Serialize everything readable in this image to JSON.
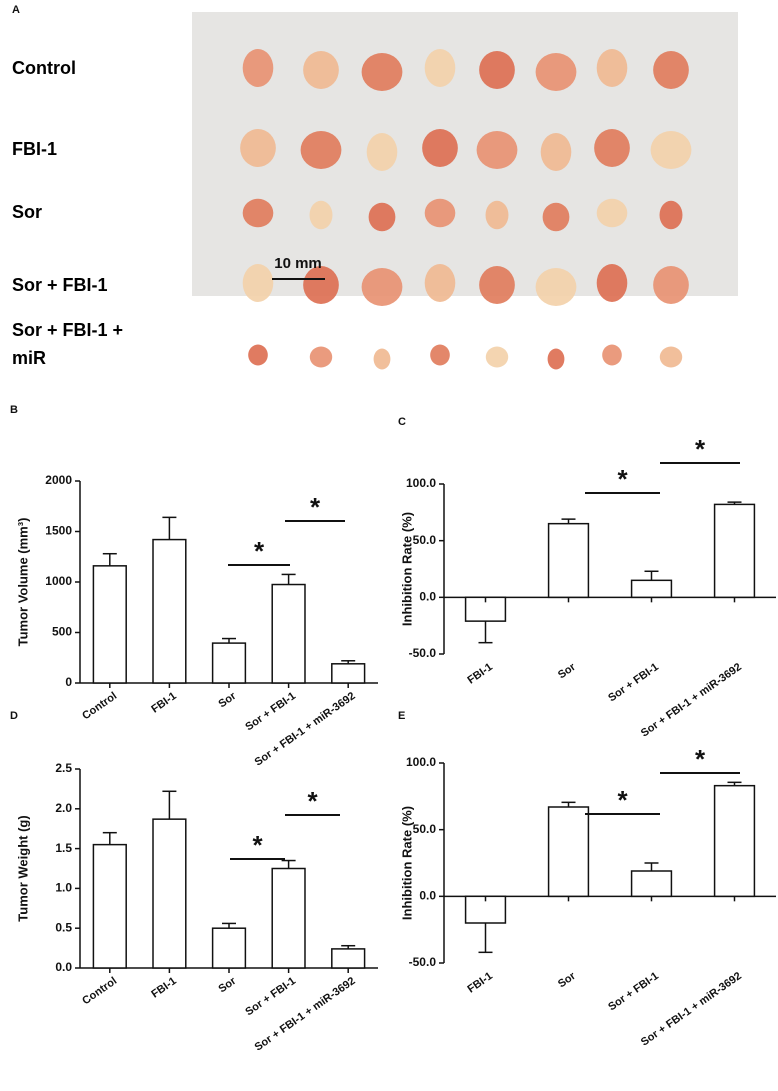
{
  "panel_a": {
    "panel": "A",
    "rows": [
      "Control",
      "FBI-1",
      "Sor",
      "Sor + FBI-1",
      "Sor + FBI-1 + miR"
    ],
    "scale_bar": "10 mm"
  },
  "chart_data": [
    {
      "type": "bar",
      "panel": "B",
      "ylabel": "Tumor Volume (mm³)",
      "categories": [
        "Control",
        "FBI-1",
        "Sor",
        "Sor + FBI-1",
        "Sor + FBI-1 + miR-3692"
      ],
      "values": [
        1160,
        1420,
        395,
        975,
        190
      ],
      "errors": [
        120,
        220,
        45,
        100,
        30
      ],
      "ylim": [
        0,
        2000
      ],
      "yticks": [
        0,
        500,
        1000,
        1500,
        2000
      ],
      "color": "#ffffff",
      "annotations": [
        "*",
        "*"
      ]
    },
    {
      "type": "bar",
      "panel": "C",
      "ylabel": "Inhibition Rate (%)",
      "categories": [
        "FBI-1",
        "Sor",
        "Sor + FBI-1",
        "Sor + FBI-1 + miR-3692"
      ],
      "values": [
        -21,
        65,
        15,
        82
      ],
      "errors": [
        19,
        4,
        8,
        2
      ],
      "ylim": [
        -50,
        100
      ],
      "yticks": [
        {
          "value": -50,
          "label": "-50.0"
        },
        {
          "value": 0,
          "label": "0.0"
        },
        {
          "value": 50,
          "label": "50.0"
        },
        {
          "value": 100,
          "label": "100.0"
        }
      ],
      "color": "#ffffff",
      "annotations": [
        "*",
        "*"
      ]
    },
    {
      "type": "bar",
      "panel": "D",
      "ylabel": "Tumor Weight (g)",
      "categories": [
        "Control",
        "FBI-1",
        "Sor",
        "Sor + FBI-1",
        "Sor + FBI-1 + miR-3692"
      ],
      "values": [
        1.55,
        1.87,
        0.5,
        1.25,
        0.24
      ],
      "errors": [
        0.15,
        0.35,
        0.06,
        0.1,
        0.04
      ],
      "ylim": [
        0,
        2.5
      ],
      "yticks": [
        {
          "value": 0,
          "label": "0.0"
        },
        {
          "value": 0.5,
          "label": "0.5"
        },
        {
          "value": 1,
          "label": "1.0"
        },
        {
          "value": 1.5,
          "label": "1.5"
        },
        {
          "value": 2,
          "label": "2.0"
        },
        {
          "value": 2.5,
          "label": "2.5"
        }
      ],
      "color": "#ffffff",
      "annotations": [
        "*",
        "*"
      ]
    },
    {
      "type": "bar",
      "panel": "E",
      "ylabel": "Inhibition Rate (%)",
      "categories": [
        "FBI-1",
        "Sor",
        "Sor + FBI-1",
        "Sor + FBI-1 + miR-3692"
      ],
      "values": [
        -20,
        67,
        19,
        83
      ],
      "errors": [
        22,
        3.5,
        6,
        2.5
      ],
      "ylim": [
        -50,
        100
      ],
      "yticks": [
        {
          "value": -50,
          "label": "-50.0"
        },
        {
          "value": 0,
          "label": "0.0"
        },
        {
          "value": 50,
          "label": "50.0"
        },
        {
          "value": 100,
          "label": "100.0"
        }
      ],
      "color": "#ffffff",
      "annotations": [
        "*",
        "*"
      ]
    }
  ]
}
